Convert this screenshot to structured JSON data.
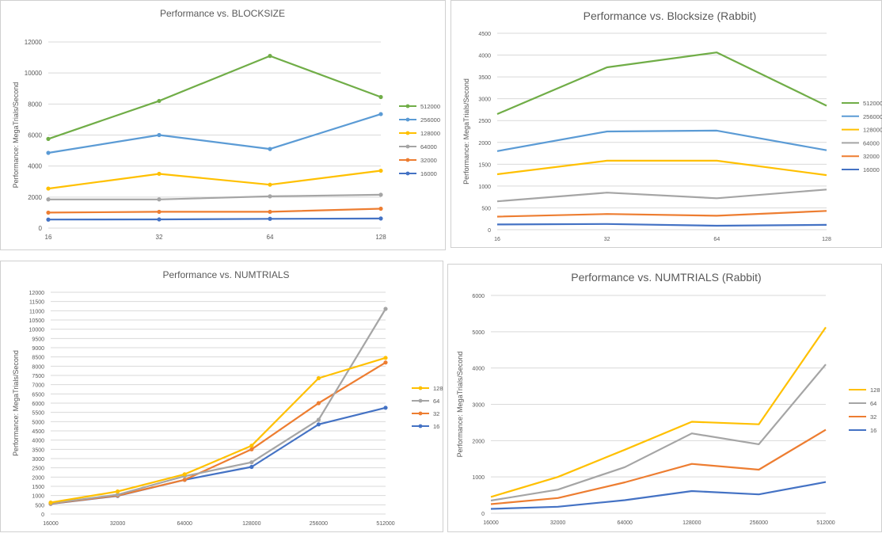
{
  "chart_data": [
    {
      "id": "c1",
      "type": "line",
      "title": "Performance vs. BLOCKSIZE",
      "xlabel": "",
      "ylabel": "Performance: MegaTrials/Second",
      "categories": [
        "16",
        "32",
        "64",
        "128"
      ],
      "ylim": [
        0,
        12000
      ],
      "yticks": [
        0,
        2000,
        4000,
        6000,
        8000,
        10000,
        12000
      ],
      "grid": true,
      "legend": "right",
      "markers": true,
      "series": [
        {
          "name": "512000",
          "color": "#70ad47",
          "values": [
            5750,
            8200,
            11100,
            8450
          ]
        },
        {
          "name": "256000",
          "color": "#5b9bd5",
          "values": [
            4850,
            6000,
            5100,
            7350
          ]
        },
        {
          "name": "128000",
          "color": "#ffc000",
          "values": [
            2550,
            3500,
            2800,
            3700
          ]
        },
        {
          "name": "64000",
          "color": "#a5a5a5",
          "values": [
            1850,
            1850,
            2050,
            2150
          ]
        },
        {
          "name": "32000",
          "color": "#ed7d31",
          "values": [
            1000,
            1050,
            1050,
            1250
          ]
        },
        {
          "name": "16000",
          "color": "#4472c4",
          "values": [
            550,
            560,
            600,
            620
          ]
        }
      ]
    },
    {
      "id": "c2",
      "type": "line",
      "title": "Performance vs. Blocksize (Rabbit)",
      "xlabel": "",
      "ylabel": "Performance: MegaTrials/Second",
      "categories": [
        "16",
        "32",
        "64",
        "128"
      ],
      "ylim": [
        0,
        4500
      ],
      "yticks": [
        0,
        500,
        1000,
        1500,
        2000,
        2500,
        3000,
        3500,
        4000,
        4500
      ],
      "grid": true,
      "legend": "right",
      "markers": false,
      "series": [
        {
          "name": "512000",
          "color": "#70ad47",
          "values": [
            2650,
            3720,
            4060,
            2840
          ]
        },
        {
          "name": "256000",
          "color": "#5b9bd5",
          "values": [
            1800,
            2250,
            2270,
            1820
          ]
        },
        {
          "name": "128000",
          "color": "#ffc000",
          "values": [
            1270,
            1580,
            1580,
            1250
          ]
        },
        {
          "name": "64000",
          "color": "#a5a5a5",
          "values": [
            650,
            850,
            720,
            920
          ]
        },
        {
          "name": "32000",
          "color": "#ed7d31",
          "values": [
            300,
            360,
            320,
            430
          ]
        },
        {
          "name": "16000",
          "color": "#4472c4",
          "values": [
            120,
            130,
            90,
            110
          ]
        }
      ]
    },
    {
      "id": "c3",
      "type": "line",
      "title": "Performance vs. NUMTRIALS",
      "xlabel": "",
      "ylabel": "Performance: MegaTrials/Second",
      "categories": [
        "16000",
        "32000",
        "64000",
        "128000",
        "256000",
        "512000"
      ],
      "ylim": [
        0,
        12000
      ],
      "yticks": [
        0,
        500,
        1000,
        1500,
        2000,
        2500,
        3000,
        3500,
        4000,
        4500,
        5000,
        5500,
        6000,
        6500,
        7000,
        7500,
        8000,
        8500,
        9000,
        9500,
        10000,
        10500,
        11000,
        11500,
        12000
      ],
      "grid": true,
      "legend": "right",
      "markers": true,
      "series": [
        {
          "name": "128",
          "color": "#ffc000",
          "values": [
            620,
            1220,
            2150,
            3700,
            7350,
            8450
          ]
        },
        {
          "name": "64",
          "color": "#a5a5a5",
          "values": [
            580,
            1050,
            2050,
            2800,
            5100,
            11100
          ]
        },
        {
          "name": "32",
          "color": "#ed7d31",
          "values": [
            560,
            1000,
            1850,
            3500,
            6000,
            8200
          ]
        },
        {
          "name": "16",
          "color": "#4472c4",
          "values": [
            550,
            980,
            1850,
            2550,
            4850,
            5750
          ]
        }
      ]
    },
    {
      "id": "c4",
      "type": "line",
      "title": "Performance vs. NUMTRIALS  (Rabbit)",
      "xlabel": "",
      "ylabel": "Performance: MegaTrials/Second",
      "categories": [
        "16000",
        "32000",
        "64000",
        "128000",
        "256000",
        "512000"
      ],
      "ylim": [
        0,
        6000
      ],
      "yticks": [
        0,
        1000,
        2000,
        3000,
        4000,
        5000,
        6000
      ],
      "grid": true,
      "legend": "right",
      "markers": false,
      "series": [
        {
          "name": "128",
          "color": "#ffc000",
          "values": [
            450,
            1000,
            1750,
            2520,
            2450,
            5120
          ]
        },
        {
          "name": "64",
          "color": "#a5a5a5",
          "values": [
            350,
            650,
            1270,
            2200,
            1900,
            4100
          ]
        },
        {
          "name": "32",
          "color": "#ed7d31",
          "values": [
            250,
            420,
            850,
            1360,
            1200,
            2300
          ]
        },
        {
          "name": "16",
          "color": "#4472c4",
          "values": [
            120,
            180,
            360,
            610,
            520,
            860
          ]
        }
      ]
    }
  ]
}
